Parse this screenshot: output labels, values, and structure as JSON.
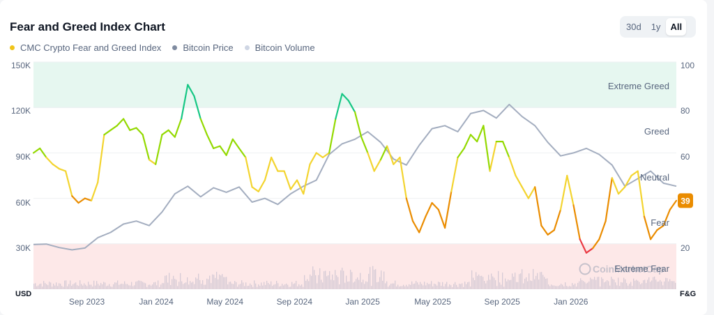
{
  "header": {
    "title": "Fear and Greed Index Chart"
  },
  "range_selector": {
    "options": [
      "30d",
      "1y",
      "All"
    ],
    "selected": "All"
  },
  "legend": [
    {
      "label": "CMC Crypto Fear and Greed Index",
      "color": "#f0c419"
    },
    {
      "label": "Bitcoin Price",
      "color": "#7f8ba0"
    },
    {
      "label": "Bitcoin Volume",
      "color": "#cfd6e4"
    }
  ],
  "chart_data": {
    "type": "line",
    "left_axis": {
      "unit_label": "USD",
      "ticks": [
        "150K",
        "120K",
        "90K",
        "60K",
        "30K"
      ],
      "values": [
        150000,
        120000,
        90000,
        60000,
        30000
      ],
      "range": [
        0,
        150000
      ]
    },
    "right_axis": {
      "unit_label": "F&G",
      "ticks": [
        "100",
        "80",
        "60",
        "40",
        "20"
      ],
      "values": [
        100,
        80,
        60,
        40,
        20
      ],
      "range": [
        0,
        100
      ]
    },
    "x_ticks": [
      "Sep 2023",
      "Jan 2024",
      "May 2024",
      "Sep 2024",
      "Jan 2025",
      "May 2025",
      "Sep 2025",
      "Jan 2026"
    ],
    "x_tick_positions": [
      0.083,
      0.191,
      0.298,
      0.406,
      0.512,
      0.621,
      0.729,
      0.836
    ],
    "zones": [
      {
        "label": "Extreme Greed",
        "from": 80,
        "to": 100,
        "color": "#e6f7f0"
      },
      {
        "label": "Greed",
        "from": 60,
        "to": 80,
        "color": null
      },
      {
        "label": "Neutral",
        "from": 40,
        "to": 60,
        "color": null
      },
      {
        "label": "Fear",
        "from": 20,
        "to": 40,
        "color": null
      },
      {
        "label": "Extreme Fear",
        "from": 0,
        "to": 20,
        "color": "#fde8e8"
      }
    ],
    "current_value": "39",
    "current_value_color": "#ea8c00",
    "watermark": "CoinMarketCap",
    "series": [
      {
        "name": "CMC Crypto Fear and Greed Index",
        "axis": "right",
        "t": [
          0,
          0.01,
          0.02,
          0.03,
          0.04,
          0.05,
          0.06,
          0.07,
          0.08,
          0.09,
          0.1,
          0.11,
          0.12,
          0.13,
          0.14,
          0.15,
          0.16,
          0.17,
          0.18,
          0.19,
          0.2,
          0.21,
          0.22,
          0.23,
          0.24,
          0.25,
          0.26,
          0.27,
          0.28,
          0.29,
          0.3,
          0.31,
          0.32,
          0.33,
          0.34,
          0.35,
          0.36,
          0.37,
          0.38,
          0.39,
          0.4,
          0.41,
          0.42,
          0.43,
          0.44,
          0.45,
          0.46,
          0.47,
          0.48,
          0.49,
          0.5,
          0.51,
          0.52,
          0.53,
          0.54,
          0.55,
          0.56,
          0.57,
          0.58,
          0.59,
          0.6,
          0.61,
          0.62,
          0.63,
          0.64,
          0.65,
          0.66,
          0.67,
          0.68,
          0.69,
          0.7,
          0.71,
          0.72,
          0.73,
          0.74,
          0.75,
          0.76,
          0.77,
          0.78,
          0.79,
          0.8,
          0.81,
          0.82,
          0.83,
          0.84,
          0.85,
          0.86,
          0.87,
          0.88,
          0.89,
          0.9,
          0.91,
          0.92,
          0.93,
          0.94,
          0.95,
          0.96,
          0.97,
          0.98,
          0.99,
          1.0
        ],
        "values": [
          60,
          62,
          58,
          55,
          53,
          52,
          41,
          38,
          40,
          39,
          47,
          68,
          70,
          72,
          75,
          70,
          71,
          68,
          57,
          55,
          68,
          70,
          67,
          75,
          90,
          85,
          75,
          68,
          62,
          63,
          59,
          66,
          62,
          58,
          45,
          43,
          48,
          58,
          52,
          52,
          44,
          48,
          42,
          55,
          60,
          58,
          60,
          75,
          86,
          83,
          78,
          67,
          60,
          52,
          57,
          63,
          55,
          58,
          40,
          30,
          25,
          32,
          38,
          35,
          27,
          43,
          58,
          62,
          68,
          65,
          72,
          52,
          65,
          65,
          58,
          50,
          45,
          40,
          45,
          28,
          24,
          26,
          35,
          50,
          37,
          22,
          16,
          18,
          22,
          30,
          49,
          42,
          45,
          50,
          52,
          32,
          22,
          26,
          28,
          35,
          39
        ]
      },
      {
        "name": "Bitcoin Price",
        "axis": "left",
        "t": [
          0,
          0.02,
          0.04,
          0.06,
          0.08,
          0.1,
          0.12,
          0.14,
          0.16,
          0.18,
          0.2,
          0.22,
          0.24,
          0.26,
          0.28,
          0.3,
          0.32,
          0.34,
          0.36,
          0.38,
          0.4,
          0.42,
          0.44,
          0.46,
          0.48,
          0.5,
          0.52,
          0.54,
          0.56,
          0.58,
          0.6,
          0.62,
          0.64,
          0.66,
          0.68,
          0.7,
          0.72,
          0.74,
          0.76,
          0.78,
          0.8,
          0.82,
          0.84,
          0.86,
          0.88,
          0.9,
          0.92,
          0.94,
          0.96,
          0.98,
          1.0
        ],
        "values": [
          29500,
          29800,
          27500,
          26000,
          27200,
          34000,
          37500,
          43000,
          45000,
          42000,
          51000,
          63000,
          68000,
          61000,
          67000,
          64000,
          67500,
          57500,
          60000,
          56000,
          63000,
          68000,
          72000,
          89000,
          96000,
          99000,
          104000,
          97000,
          86000,
          82000,
          95000,
          106000,
          108000,
          104000,
          116000,
          118000,
          113000,
          122000,
          114000,
          108000,
          97000,
          88000,
          90000,
          93000,
          89000,
          82000,
          68000,
          73000,
          78000,
          70000,
          68000
        ]
      }
    ]
  }
}
